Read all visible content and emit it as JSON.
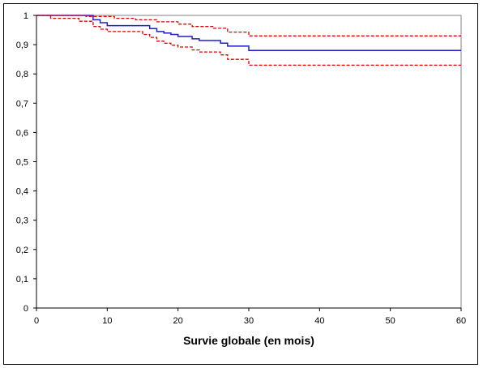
{
  "chart_data": {
    "type": "line",
    "title": "",
    "xlabel": "Survie globale (en mois)",
    "ylabel": "",
    "xlim": [
      0,
      60
    ],
    "ylim": [
      0,
      1
    ],
    "x_ticks": [
      0,
      10,
      20,
      30,
      40,
      50,
      60
    ],
    "x_tick_labels": [
      "0",
      "10",
      "20",
      "30",
      "40",
      "50",
      "60"
    ],
    "y_ticks": [
      0,
      0.1,
      0.2,
      0.3,
      0.4,
      0.5,
      0.6,
      0.7,
      0.8,
      0.9,
      1
    ],
    "y_tick_labels": [
      "0",
      "0,1",
      "0,2",
      "0,3",
      "0,4",
      "0,5",
      "0,6",
      "0,7",
      "0,8",
      "0,9",
      "1"
    ],
    "grid": false,
    "legend": "none",
    "step": true,
    "series": [
      {
        "style": "solid",
        "color": "#1f1fcc",
        "points": [
          [
            0,
            1
          ],
          [
            8,
            1
          ],
          [
            8,
            0.985
          ],
          [
            9,
            0.985
          ],
          [
            9,
            0.975
          ],
          [
            10,
            0.975
          ],
          [
            10,
            0.965
          ],
          [
            16,
            0.965
          ],
          [
            16,
            0.955
          ],
          [
            17,
            0.955
          ],
          [
            17,
            0.945
          ],
          [
            18,
            0.945
          ],
          [
            18,
            0.94
          ],
          [
            19,
            0.94
          ],
          [
            19,
            0.935
          ],
          [
            20,
            0.935
          ],
          [
            20,
            0.928
          ],
          [
            22,
            0.928
          ],
          [
            22,
            0.92
          ],
          [
            23,
            0.92
          ],
          [
            23,
            0.914
          ],
          [
            26,
            0.914
          ],
          [
            26,
            0.905
          ],
          [
            27,
            0.905
          ],
          [
            27,
            0.895
          ],
          [
            30,
            0.895
          ],
          [
            30,
            0.88
          ],
          [
            60,
            0.88
          ]
        ]
      },
      {
        "style": "dashed",
        "color": "#e00000",
        "points": [
          [
            0,
            1
          ],
          [
            7,
            1
          ],
          [
            7,
            0.996
          ],
          [
            11,
            0.996
          ],
          [
            11,
            0.99
          ],
          [
            14,
            0.99
          ],
          [
            14,
            0.985
          ],
          [
            17,
            0.985
          ],
          [
            17,
            0.978
          ],
          [
            20,
            0.978
          ],
          [
            20,
            0.97
          ],
          [
            22,
            0.97
          ],
          [
            22,
            0.962
          ],
          [
            25,
            0.962
          ],
          [
            25,
            0.956
          ],
          [
            27,
            0.956
          ],
          [
            27,
            0.943
          ],
          [
            30,
            0.943
          ],
          [
            30,
            0.93
          ],
          [
            60,
            0.93
          ]
        ]
      },
      {
        "style": "dashed",
        "color": "#e00000",
        "points": [
          [
            0,
            1
          ],
          [
            2,
            1
          ],
          [
            2,
            0.99
          ],
          [
            6,
            0.99
          ],
          [
            6,
            0.98
          ],
          [
            8,
            0.98
          ],
          [
            8,
            0.962
          ],
          [
            9,
            0.962
          ],
          [
            9,
            0.953
          ],
          [
            10,
            0.953
          ],
          [
            10,
            0.945
          ],
          [
            15,
            0.945
          ],
          [
            15,
            0.935
          ],
          [
            16,
            0.935
          ],
          [
            16,
            0.925
          ],
          [
            17,
            0.925
          ],
          [
            17,
            0.912
          ],
          [
            18,
            0.912
          ],
          [
            18,
            0.905
          ],
          [
            19,
            0.905
          ],
          [
            19,
            0.898
          ],
          [
            20,
            0.898
          ],
          [
            20,
            0.892
          ],
          [
            22,
            0.892
          ],
          [
            22,
            0.882
          ],
          [
            23,
            0.882
          ],
          [
            23,
            0.875
          ],
          [
            26,
            0.875
          ],
          [
            26,
            0.865
          ],
          [
            27,
            0.865
          ],
          [
            27,
            0.85
          ],
          [
            30,
            0.85
          ],
          [
            30,
            0.83
          ],
          [
            60,
            0.83
          ]
        ]
      }
    ]
  }
}
